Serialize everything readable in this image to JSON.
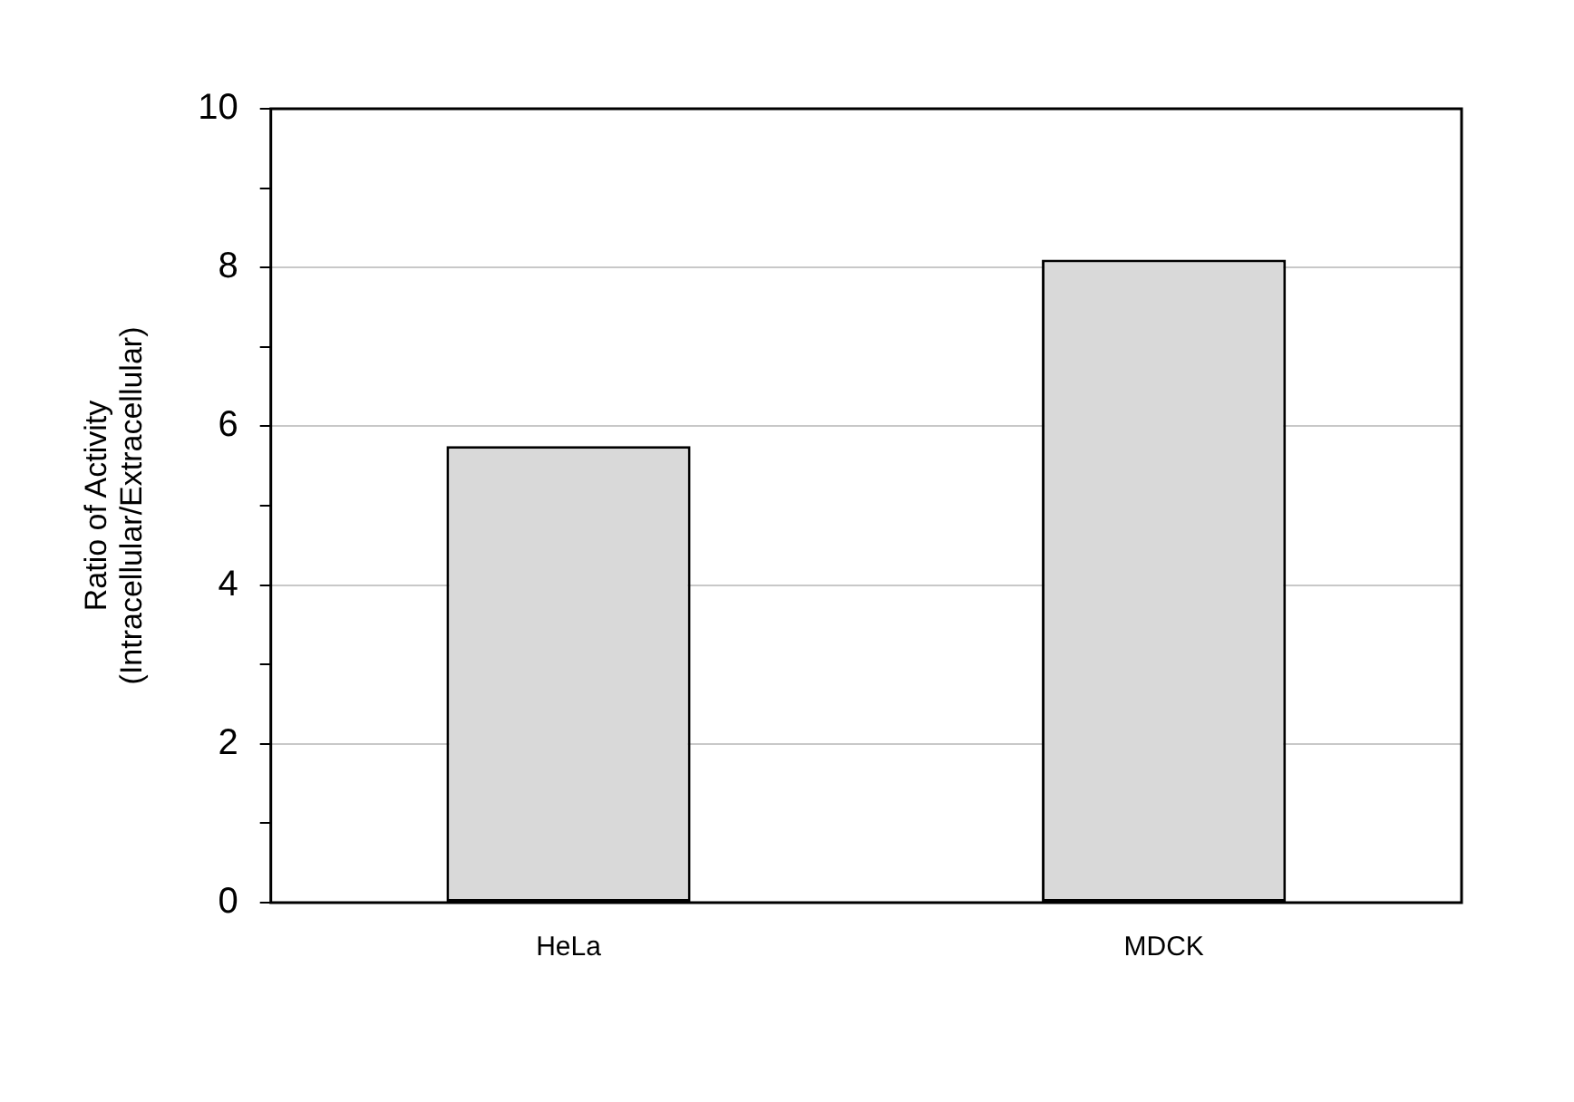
{
  "chart_data": {
    "type": "bar",
    "ylabel": "Ratio of Activity\n(Intracellular/Extracellular)",
    "categories": [
      "HeLa",
      "MDCK"
    ],
    "values": [
      5.75,
      8.1
    ],
    "color": "#d9d9d9",
    "ylim": [
      0,
      10
    ],
    "yticks": [
      0,
      {
        "value": 1,
        "label": null
      },
      2,
      {
        "value": 3,
        "label": null
      },
      4,
      {
        "value": 5,
        "label": null
      },
      6,
      {
        "value": 7,
        "label": null
      },
      8,
      {
        "value": 9,
        "label": null
      },
      10
    ],
    "grid": "y",
    "legend": false
  }
}
